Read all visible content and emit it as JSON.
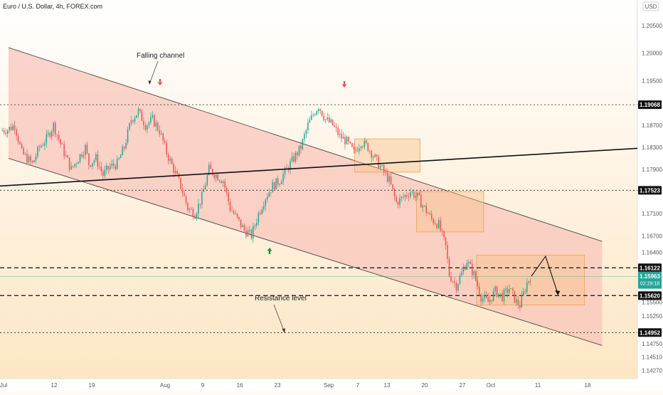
{
  "header": {
    "title": "Euro / U.S. Dollar, 4h, FOREX.com",
    "currency": "USD"
  },
  "colors": {
    "bull": "#26a69a",
    "bear": "#ef5350",
    "channel_fill": "#f8c6bb",
    "box_fill": "#f9c48f",
    "box_stroke": "#f0a050",
    "current": "#26a69a"
  },
  "chart_data": {
    "type": "candlestick",
    "symbol": "EURUSD",
    "timeframe": "4h",
    "y_axis": {
      "ticks": [
        1.205,
        1.2,
        1.195,
        1.187,
        1.183,
        1.179,
        1.171,
        1.167,
        1.164,
        1.155,
        1.1525,
        1.1475,
        1.1451,
        1.1427
      ],
      "ylim": [
        1.1412,
        1.2096
      ]
    },
    "x_axis": {
      "ticks": [
        "Jul",
        "12",
        "19",
        "Aug",
        "9",
        "16",
        "23",
        "Sep",
        "7",
        "13",
        "20",
        "27",
        "Oct",
        "11",
        "18"
      ]
    },
    "price_levels": [
      {
        "label": "1.19068",
        "value": 1.19068,
        "style": "dotted"
      },
      {
        "label": "1.17523",
        "value": 1.17523,
        "style": "dotted"
      },
      {
        "label": "1.16122",
        "value": 1.16122,
        "style": "dashed"
      },
      {
        "label": "1.15620",
        "value": 1.1562,
        "style": "dashed"
      },
      {
        "label": "1.14952",
        "value": 1.14952,
        "style": "dotted"
      }
    ],
    "current_price": {
      "value": 1.15963,
      "label": "1.15963",
      "countdown": "02:29:18"
    },
    "annotations": [
      {
        "text": "Falling channel"
      },
      {
        "text": "Resistance level"
      }
    ],
    "price_path": [
      {
        "t": 0,
        "p": 1.186
      },
      {
        "t": 2,
        "p": 1.1862
      },
      {
        "t": 4,
        "p": 1.187
      },
      {
        "t": 6,
        "p": 1.182
      },
      {
        "t": 9,
        "p": 1.18
      },
      {
        "t": 11,
        "p": 1.183
      },
      {
        "t": 13,
        "p": 1.1845
      },
      {
        "t": 15,
        "p": 1.187
      },
      {
        "t": 18,
        "p": 1.182
      },
      {
        "t": 20,
        "p": 1.179
      },
      {
        "t": 22,
        "p": 1.181
      },
      {
        "t": 24,
        "p": 1.183
      },
      {
        "t": 25,
        "p": 1.18
      },
      {
        "t": 27,
        "p": 1.181
      },
      {
        "t": 29,
        "p": 1.178
      },
      {
        "t": 31,
        "p": 1.1795
      },
      {
        "t": 33,
        "p": 1.18
      },
      {
        "t": 35,
        "p": 1.183
      },
      {
        "t": 37,
        "p": 1.188
      },
      {
        "t": 39,
        "p": 1.1895
      },
      {
        "t": 41,
        "p": 1.187
      },
      {
        "t": 43,
        "p": 1.188
      },
      {
        "t": 45,
        "p": 1.186
      },
      {
        "t": 47,
        "p": 1.182
      },
      {
        "t": 49,
        "p": 1.179
      },
      {
        "t": 51,
        "p": 1.176
      },
      {
        "t": 53,
        "p": 1.172
      },
      {
        "t": 55,
        "p": 1.171
      },
      {
        "t": 57,
        "p": 1.174
      },
      {
        "t": 59,
        "p": 1.179
      },
      {
        "t": 61,
        "p": 1.178
      },
      {
        "t": 63,
        "p": 1.177
      },
      {
        "t": 65,
        "p": 1.172
      },
      {
        "t": 67,
        "p": 1.17
      },
      {
        "t": 69,
        "p": 1.168
      },
      {
        "t": 71,
        "p": 1.167
      },
      {
        "t": 73,
        "p": 1.171
      },
      {
        "t": 75,
        "p": 1.174
      },
      {
        "t": 77,
        "p": 1.176
      },
      {
        "t": 79,
        "p": 1.177
      },
      {
        "t": 81,
        "p": 1.179
      },
      {
        "t": 83,
        "p": 1.181
      },
      {
        "t": 85,
        "p": 1.183
      },
      {
        "t": 87,
        "p": 1.187
      },
      {
        "t": 89,
        "p": 1.1895
      },
      {
        "t": 90,
        "p": 1.1905
      },
      {
        "t": 92,
        "p": 1.188
      },
      {
        "t": 94,
        "p": 1.187
      },
      {
        "t": 96,
        "p": 1.185
      },
      {
        "t": 98,
        "p": 1.184
      },
      {
        "t": 100,
        "p": 1.182
      },
      {
        "t": 102,
        "p": 1.184
      },
      {
        "t": 104,
        "p": 1.183
      },
      {
        "t": 106,
        "p": 1.181
      },
      {
        "t": 108,
        "p": 1.179
      },
      {
        "t": 110,
        "p": 1.177
      },
      {
        "t": 112,
        "p": 1.173
      },
      {
        "t": 114,
        "p": 1.174
      },
      {
        "t": 116,
        "p": 1.175
      },
      {
        "t": 118,
        "p": 1.174
      },
      {
        "t": 120,
        "p": 1.172
      },
      {
        "t": 122,
        "p": 1.17
      },
      {
        "t": 124,
        "p": 1.169
      },
      {
        "t": 126,
        "p": 1.165
      },
      {
        "t": 127,
        "p": 1.16
      },
      {
        "t": 129,
        "p": 1.158
      },
      {
        "t": 131,
        "p": 1.161
      },
      {
        "t": 132,
        "p": 1.1625
      },
      {
        "t": 134,
        "p": 1.16
      },
      {
        "t": 136,
        "p": 1.156
      },
      {
        "t": 138,
        "p": 1.155
      },
      {
        "t": 140,
        "p": 1.157
      },
      {
        "t": 142,
        "p": 1.156
      },
      {
        "t": 144,
        "p": 1.1575
      },
      {
        "t": 146,
        "p": 1.155
      },
      {
        "t": 147,
        "p": 1.1545
      },
      {
        "t": 149,
        "p": 1.1585
      },
      {
        "t": 150,
        "p": 1.1596
      }
    ]
  }
}
